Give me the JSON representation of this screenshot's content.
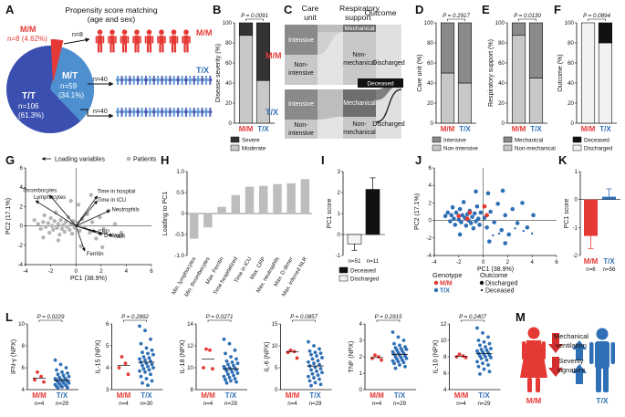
{
  "panel_letters": [
    "A",
    "B",
    "C",
    "D",
    "E",
    "F",
    "G",
    "H",
    "I",
    "J",
    "K",
    "L",
    "M"
  ],
  "colors": {
    "mm": "#e53935",
    "tx": "#2f6fb5",
    "tx_dark": "#3a4fb0",
    "dark": "#333333",
    "light": "#c8c8c8",
    "mid": "#8a8a8a"
  },
  "panel_a": {
    "title_line1": "Propensity score matching",
    "title_line2": "(age and sex)",
    "mm_pie_label": "M/M",
    "mm_pie_n": "n=8 (4.62%)",
    "tt_label": "T/T",
    "tt_n": "n=106",
    "tt_pct": "(61.3%)",
    "mt_label": "M/T",
    "mt_n": "n=59",
    "mt_pct": "(34.1%)",
    "arrow_n8": "n=8",
    "arrow_n40a": "n=40",
    "arrow_n40b": "n=40",
    "group_mm": "M/M",
    "group_tx": "T/X"
  },
  "chart_data": [
    {
      "panel": "B",
      "type": "bar",
      "stacked": true,
      "ylabel": "Disease severity (%)",
      "ylim": [
        0,
        100
      ],
      "yticks": [
        "0",
        "20",
        "40",
        "60",
        "80",
        "100"
      ],
      "categories": [
        "M/M",
        "T/X"
      ],
      "series": [
        {
          "name": "Moderate",
          "values": [
            87.5,
            42.5
          ]
        },
        {
          "name": "Severe",
          "values": [
            12.5,
            57.5
          ]
        }
      ],
      "pvalue": "P = 0.0091",
      "legend": [
        "Severe",
        "Moderate"
      ]
    },
    {
      "panel": "C",
      "type": "sankey",
      "headers": [
        "Care unit",
        "Respiratory support",
        "Outcome"
      ],
      "groups": [
        "M/M",
        "T/X"
      ],
      "node_labels": {
        "intensive": "Intensive",
        "non_intensive_1": "Non-",
        "non_intensive_2": "intensive",
        "mechanical": "Mechanical",
        "non_mechanical_1": "Non-",
        "non_mechanical_2": "mechanical",
        "discharged": "Discharged",
        "deceased": "Deceased"
      }
    },
    {
      "panel": "D",
      "type": "bar",
      "stacked": true,
      "ylabel": "Care unit (%)",
      "ylim": [
        0,
        100
      ],
      "yticks": [
        "0",
        "20",
        "40",
        "60",
        "80",
        "100"
      ],
      "categories": [
        "M/M",
        "T/X"
      ],
      "series": [
        {
          "name": "Non-intensive",
          "values": [
            50,
            40
          ]
        },
        {
          "name": "Intensive",
          "values": [
            50,
            60
          ]
        }
      ],
      "pvalue": "P = 0.2917",
      "legend": [
        "Intensive",
        "Non-intensive"
      ]
    },
    {
      "panel": "E",
      "type": "bar",
      "stacked": true,
      "ylabel": "Respiratory support (%)",
      "ylim": [
        0,
        100
      ],
      "yticks": [
        "0",
        "20",
        "40",
        "60",
        "80",
        "100"
      ],
      "categories": [
        "M/M",
        "T/X"
      ],
      "series": [
        {
          "name": "Non-mechanical",
          "values": [
            87.5,
            45
          ]
        },
        {
          "name": "Mechanical",
          "values": [
            12.5,
            55
          ]
        }
      ],
      "pvalue": "P = 0.0130",
      "legend": [
        "Mechanical",
        "Non-mechanical"
      ]
    },
    {
      "panel": "F",
      "type": "bar",
      "stacked": true,
      "ylabel": "Outcome (%)",
      "ylim": [
        0,
        100
      ],
      "yticks": [
        "0",
        "20",
        "40",
        "60",
        "80",
        "100"
      ],
      "categories": [
        "M/M",
        "T/X"
      ],
      "series": [
        {
          "name": "Discharged",
          "values": [
            100,
            80
          ]
        },
        {
          "name": "Deceased",
          "values": [
            0,
            20
          ]
        }
      ],
      "pvalue": "P = 0.0894",
      "legend": [
        "Deceased",
        "Discharged"
      ]
    },
    {
      "panel": "G",
      "type": "scatter",
      "xlabel": "PC1 (38.9%)",
      "ylabel": "PC2 (17.1%)",
      "xlim": [
        -4,
        6
      ],
      "ylim": [
        -4,
        6
      ],
      "xticks": [
        "-4",
        "-2",
        "0",
        "2",
        "4",
        "6"
      ],
      "yticks": [
        "-4",
        "-2",
        "0",
        "2",
        "4",
        "6"
      ],
      "legend": [
        "Loading variables",
        "Patients"
      ],
      "loadings": [
        {
          "name": "Thrombocytes",
          "x": -2.1,
          "y": 3.2
        },
        {
          "name": "Lymphocytes",
          "x": -3.2,
          "y": 2.6
        },
        {
          "name": "Time in hospital",
          "x": 1.7,
          "y": 3.1
        },
        {
          "name": "Time in ICU",
          "x": 1.7,
          "y": 2.6
        },
        {
          "name": "Neutrophils",
          "x": 2.7,
          "y": 1.6
        },
        {
          "name": "CRP",
          "x": 1.6,
          "y": -0.6
        },
        {
          "name": "D-dimer",
          "x": 2.1,
          "y": -0.9
        },
        {
          "name": "NLR",
          "x": 2.9,
          "y": -1.0
        },
        {
          "name": "Ferritin",
          "x": 0.7,
          "y": -2.6
        }
      ],
      "points": [
        [
          -3.3,
          0.6
        ],
        [
          -3.0,
          0.2
        ],
        [
          -2.8,
          -0.3
        ],
        [
          -2.6,
          0.4
        ],
        [
          -2.5,
          1.1
        ],
        [
          -2.4,
          -0.1
        ],
        [
          -2.2,
          0.3
        ],
        [
          -2.1,
          -0.7
        ],
        [
          -2.0,
          0.8
        ],
        [
          -1.9,
          0.0
        ],
        [
          -1.8,
          -0.4
        ],
        [
          -1.7,
          0.5
        ],
        [
          -1.6,
          1.4
        ],
        [
          -1.5,
          -0.2
        ],
        [
          -1.4,
          0.2
        ],
        [
          -1.3,
          -0.9
        ],
        [
          -1.2,
          0.6
        ],
        [
          -1.1,
          -0.3
        ],
        [
          -1.0,
          0.1
        ],
        [
          -0.9,
          -0.6
        ],
        [
          -0.8,
          0.4
        ],
        [
          -0.7,
          -0.1
        ],
        [
          -0.6,
          0.9
        ],
        [
          -0.5,
          -0.4
        ],
        [
          -0.4,
          0.2
        ],
        [
          -0.3,
          -0.8
        ],
        [
          -0.2,
          0.5
        ],
        [
          -0.1,
          -0.2
        ],
        [
          0.1,
          0.3
        ],
        [
          0.3,
          -0.5
        ],
        [
          0.5,
          0.7
        ],
        [
          0.7,
          -0.1
        ],
        [
          0.9,
          1.2
        ],
        [
          1.1,
          -0.7
        ],
        [
          1.3,
          0.4
        ],
        [
          1.6,
          -1.3
        ],
        [
          1.9,
          0.9
        ],
        [
          2.2,
          -0.3
        ],
        [
          2.6,
          1.6
        ],
        [
          3.1,
          0.2
        ],
        [
          0.2,
          2.2
        ],
        [
          -0.4,
          2.6
        ],
        [
          1.2,
          3.2
        ],
        [
          0.4,
          -2.1
        ],
        [
          -1.4,
          -1.5
        ],
        [
          2.1,
          -2.2
        ],
        [
          3.6,
          -0.7
        ],
        [
          -2.6,
          -1.2
        ]
      ]
    },
    {
      "panel": "H",
      "type": "bar",
      "ylabel": "Loading to PC1",
      "ylim": [
        -1,
        1
      ],
      "yticks": [
        "-1.0",
        "-0.5",
        "0",
        "0.5",
        "1.0"
      ],
      "categories": [
        "Min. lymphocytes",
        "Min. thrombocytes",
        "Max. Ferritin",
        "Time hospitalized",
        "Time in ICU",
        "Max. CRP",
        "Max. neutrophils",
        "Max. D-dimer",
        "Max. inferred NLR"
      ],
      "values": [
        -0.6,
        -0.33,
        0.16,
        0.44,
        0.64,
        0.66,
        0.7,
        0.72,
        0.82
      ]
    },
    {
      "panel": "I",
      "type": "bar",
      "ylabel": "PC1 score",
      "ylim": [
        -1,
        3
      ],
      "yticks": [
        "-1",
        "0",
        "1",
        "2",
        "3"
      ],
      "categories": [
        "Discharged",
        "Deceased"
      ],
      "values": [
        -0.45,
        2.15
      ],
      "errors": [
        0.3,
        0.55
      ],
      "n_labels": [
        "n=51",
        "n=11"
      ],
      "legend": [
        "Deceased",
        "Discharged"
      ]
    },
    {
      "panel": "J",
      "type": "scatter",
      "xlabel": "PC1 (38.9%)",
      "ylabel": "PC2 (17.1%)",
      "xlim": [
        -4,
        6
      ],
      "ylim": [
        -4,
        6
      ],
      "xticks": [
        "-4",
        "-2",
        "0",
        "2",
        "4",
        "6"
      ],
      "yticks": [
        "-4",
        "-2",
        "0",
        "2",
        "4",
        "6"
      ],
      "legend_genotype_title": "Genotype",
      "legend_outcome_title": "Outcome",
      "legend_genotype": [
        "M/M",
        "T/X"
      ],
      "legend_outcome": [
        "Discharged",
        "Deceased"
      ],
      "tx_points": [
        [
          -3.1,
          0.5
        ],
        [
          -2.9,
          0.9
        ],
        [
          -2.7,
          -0.1
        ],
        [
          -2.6,
          0.6
        ],
        [
          -2.5,
          1.5
        ],
        [
          -2.4,
          0.2
        ],
        [
          -2.3,
          -0.5
        ],
        [
          -2.2,
          0.9
        ],
        [
          -2.0,
          0.1
        ],
        [
          -1.9,
          1.3
        ],
        [
          -1.8,
          -0.2
        ],
        [
          -1.7,
          0.6
        ],
        [
          -1.6,
          2.1
        ],
        [
          -1.5,
          0.3
        ],
        [
          -1.4,
          -0.6
        ],
        [
          -1.3,
          0.7
        ],
        [
          -1.2,
          0.0
        ],
        [
          -1.1,
          1.1
        ],
        [
          -1.0,
          -0.3
        ],
        [
          -0.9,
          0.4
        ],
        [
          -0.8,
          -0.9
        ],
        [
          -0.7,
          0.8
        ],
        [
          -0.6,
          -0.1
        ],
        [
          -0.5,
          1.6
        ],
        [
          -0.4,
          0.2
        ],
        [
          -0.3,
          -0.5
        ],
        [
          -0.2,
          0.9
        ],
        [
          0.1,
          0.3
        ],
        [
          0.3,
          -0.8
        ],
        [
          0.6,
          1.0
        ],
        [
          0.9,
          -0.2
        ],
        [
          1.2,
          1.9
        ],
        [
          1.5,
          -1.1
        ],
        [
          1.8,
          0.6
        ],
        [
          2.1,
          -1.6
        ],
        [
          2.4,
          1.3
        ],
        [
          2.8,
          -0.3
        ],
        [
          3.2,
          2.0
        ],
        [
          3.6,
          -0.8
        ],
        [
          4.1,
          0.6
        ],
        [
          0.4,
          3.1
        ],
        [
          -0.6,
          3.3
        ],
        [
          1.6,
          3.4
        ],
        [
          0.5,
          -2.4
        ],
        [
          1.8,
          -2.6
        ],
        [
          -1.9,
          -1.6
        ]
      ],
      "tx_deceased": [
        [
          1.3,
          -1.5
        ],
        [
          2.6,
          -0.9
        ],
        [
          3.3,
          -1.2
        ],
        [
          4.0,
          -1.5
        ],
        [
          0.8,
          -1.7
        ]
      ],
      "mm_points": [
        [
          -2.0,
          0.5
        ],
        [
          -1.3,
          0.2
        ],
        [
          -1.1,
          0.9
        ],
        [
          0.1,
          1.6
        ],
        [
          0.3,
          0.6
        ]
      ]
    },
    {
      "panel": "K",
      "type": "bar",
      "ylabel": "PC1 score",
      "ylim": [
        -2,
        1
      ],
      "yticks": [
        "-2",
        "-1",
        "0",
        "1"
      ],
      "categories": [
        "M/M",
        "T/X"
      ],
      "values": [
        -1.3,
        0.1
      ],
      "errors": [
        0.45,
        0.28
      ],
      "n_labels": [
        "n=6",
        "n=56"
      ]
    },
    {
      "panel": "L",
      "type": "scatter",
      "subpanels": [
        {
          "ylabel": "IFN-γ (NPX)",
          "ylim": [
            4,
            10
          ],
          "yticks": [
            "4",
            "6",
            "8",
            "10"
          ],
          "pvalue": "P = 0.0229",
          "n": [
            "n=4",
            "n=29"
          ],
          "mm": [
            5.6,
            5.2,
            4.9,
            4.7
          ],
          "tx": [
            6.7,
            6.3,
            6.0,
            5.8,
            5.6,
            5.5,
            5.4,
            5.3,
            5.2,
            5.1,
            5.05,
            5.0,
            4.95,
            4.9,
            4.85,
            4.8,
            4.75,
            4.7,
            4.65,
            4.6,
            4.55,
            4.5,
            4.45,
            4.4,
            4.35,
            4.3,
            4.25,
            4.2,
            4.15
          ]
        },
        {
          "ylabel": "IL-15 (NPX)",
          "ylim": [
            3,
            6
          ],
          "yticks": [
            "3",
            "4",
            "5",
            "6"
          ],
          "pvalue": "P = 0.2892",
          "n": [
            "n=4",
            "n=30"
          ],
          "mm": [
            4.5,
            4.2,
            4.0,
            3.7
          ],
          "tx": [
            5.9,
            5.7,
            5.3,
            5.1,
            4.9,
            4.8,
            4.7,
            4.65,
            4.6,
            4.5,
            4.45,
            4.4,
            4.35,
            4.3,
            4.25,
            4.2,
            4.15,
            4.1,
            4.05,
            4.0,
            3.95,
            3.9,
            3.85,
            3.8,
            3.7,
            3.6,
            3.5,
            3.4,
            3.3,
            3.2
          ]
        },
        {
          "ylabel": "IL-18 (NPX)",
          "ylim": [
            8,
            14
          ],
          "yticks": [
            "8",
            "10",
            "12",
            "14"
          ],
          "pvalue": "P = 0.0271",
          "n": [
            "n=4",
            "n=29"
          ],
          "mm": [
            11.7,
            11.6,
            10.0,
            9.9
          ],
          "tx": [
            12.6,
            12.2,
            11.6,
            11.3,
            11.0,
            10.8,
            10.6,
            10.5,
            10.4,
            10.3,
            10.2,
            10.1,
            10.0,
            9.95,
            9.9,
            9.85,
            9.8,
            9.7,
            9.6,
            9.5,
            9.4,
            9.3,
            9.2,
            9.1,
            9.0,
            8.9,
            8.8,
            8.7,
            8.6
          ]
        },
        {
          "ylabel": "IL-6 (NPX)",
          "ylim": [
            0,
            15
          ],
          "yticks": [
            "0",
            "5",
            "10",
            "15"
          ],
          "pvalue": "P = 0.0857",
          "n": [
            "n=4",
            "n=29"
          ],
          "mm": [
            9.0,
            8.7,
            8.5,
            7.2
          ],
          "tx": [
            10.9,
            10.0,
            9.3,
            8.8,
            8.5,
            8.3,
            8.0,
            7.7,
            7.3,
            7.0,
            6.6,
            6.3,
            6.0,
            5.7,
            5.4,
            5.1,
            4.8,
            4.5,
            4.2,
            3.9,
            3.6,
            3.3,
            3.0,
            2.7,
            2.4,
            2.0,
            1.6,
            1.2,
            0.9
          ]
        },
        {
          "ylabel": "TNF (NPX)",
          "ylim": [
            0,
            4
          ],
          "yticks": [
            "0",
            "1",
            "2",
            "3",
            "4"
          ],
          "pvalue": "P = 0.2915",
          "n": [
            "n=4",
            "n=29"
          ],
          "mm": [
            2.1,
            2.0,
            1.9,
            1.8
          ],
          "tx": [
            3.5,
            3.2,
            3.0,
            2.8,
            2.7,
            2.6,
            2.55,
            2.5,
            2.45,
            2.4,
            2.35,
            2.3,
            2.25,
            2.2,
            2.15,
            2.1,
            2.05,
            2.0,
            1.95,
            1.9,
            1.85,
            1.8,
            1.75,
            1.7,
            1.65,
            1.6,
            1.5,
            1.4,
            1.3
          ]
        },
        {
          "ylabel": "IL-10 (NPX)",
          "ylim": [
            4,
            12
          ],
          "yticks": [
            "4",
            "6",
            "8",
            "10",
            "12"
          ],
          "pvalue": "P = 0.2407",
          "n": [
            "n=4",
            "n=29"
          ],
          "mm": [
            8.3,
            8.1,
            8.0,
            7.9
          ],
          "tx": [
            11.5,
            10.9,
            10.4,
            10.0,
            9.8,
            9.6,
            9.4,
            9.2,
            9.0,
            8.9,
            8.8,
            8.7,
            8.6,
            8.5,
            8.4,
            8.3,
            8.2,
            8.1,
            8.0,
            7.9,
            7.8,
            7.6,
            7.4,
            7.2,
            7.0,
            6.8,
            6.5,
            6.2,
            5.9
          ]
        }
      ]
    }
  ],
  "panel_m": {
    "arrow_text1_line1": "Mechanical",
    "arrow_text1_line2": "ventilation",
    "arrow_text2_line1": "Severity",
    "arrow_text2_line2": "signature",
    "mm_label": "M/M",
    "tx_label": "T/X"
  }
}
